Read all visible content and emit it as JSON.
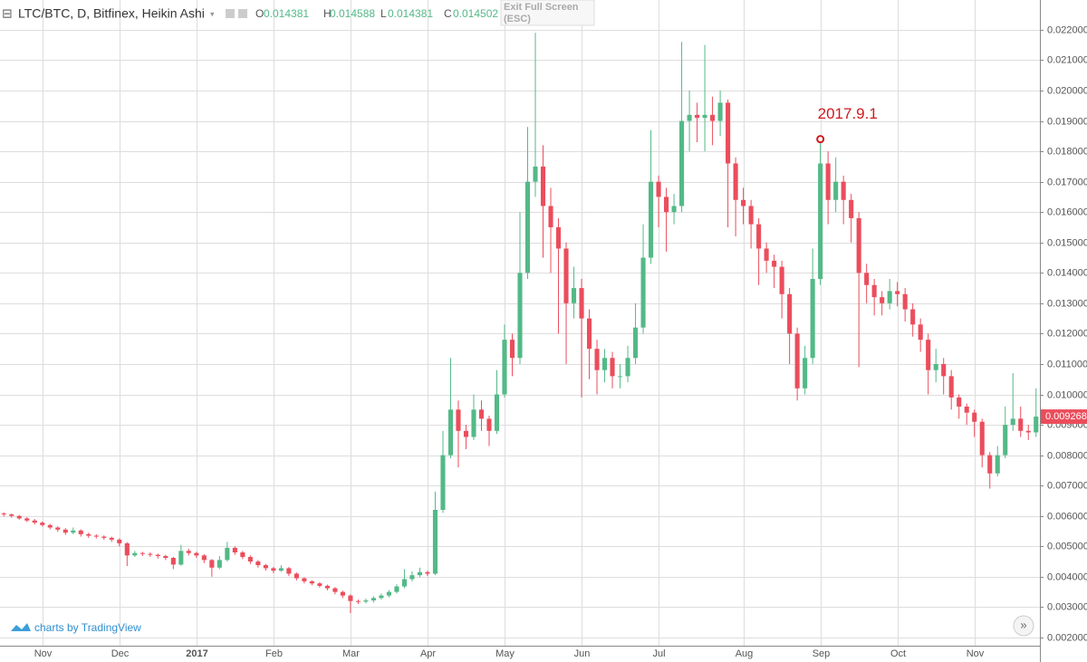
{
  "chart_data": {
    "type": "candlestick",
    "title": "LTC/BTC, D, Bitfinex, Heikin Ashi",
    "header_values": [
      {
        "label": "O",
        "value": 0.014381
      },
      {
        "label": "H",
        "value": 0.014588
      },
      {
        "label": "L",
        "value": 0.014381
      },
      {
        "label": "C",
        "value": 0.014502
      }
    ],
    "last_price": 0.009268,
    "annotation": {
      "text": "2017.9.1",
      "index": 106
    },
    "up_color": "#53b987",
    "down_color": "#eb4d5c",
    "grid": true,
    "ylim": [
      0.00173,
      0.02298
    ],
    "yticks": [
      {
        "value": 0.002,
        "label": "0.002000"
      },
      {
        "value": 0.003,
        "label": "0.003000"
      },
      {
        "value": 0.004,
        "label": "0.004000"
      },
      {
        "value": 0.005,
        "label": "0.005000"
      },
      {
        "value": 0.006,
        "label": "0.006000"
      },
      {
        "value": 0.007,
        "label": "0.007000"
      },
      {
        "value": 0.008,
        "label": "0.008000"
      },
      {
        "value": 0.009,
        "label": "0.009000"
      },
      {
        "value": 0.01,
        "label": "0.010000"
      },
      {
        "value": 0.011,
        "label": "0.011000"
      },
      {
        "value": 0.012,
        "label": "0.012000"
      },
      {
        "value": 0.013,
        "label": "0.013000"
      },
      {
        "value": 0.014,
        "label": "0.014000"
      },
      {
        "value": 0.015,
        "label": "0.015000"
      },
      {
        "value": 0.016,
        "label": "0.016000"
      },
      {
        "value": 0.017,
        "label": "0.017000"
      },
      {
        "value": 0.018,
        "label": "0.018000"
      },
      {
        "value": 0.019,
        "label": "0.019000"
      },
      {
        "value": 0.02,
        "label": "0.020000"
      },
      {
        "value": 0.021,
        "label": "0.021000"
      },
      {
        "value": 0.022,
        "label": "0.022000"
      }
    ],
    "categories": [
      null,
      null,
      null,
      null,
      null,
      "Nov",
      null,
      null,
      null,
      null,
      null,
      null,
      null,
      null,
      null,
      "Dec",
      null,
      null,
      null,
      null,
      null,
      null,
      null,
      null,
      null,
      "2017",
      null,
      null,
      null,
      null,
      null,
      null,
      null,
      null,
      null,
      "Feb",
      null,
      null,
      null,
      null,
      null,
      null,
      null,
      null,
      null,
      "Mar",
      null,
      null,
      null,
      null,
      null,
      null,
      null,
      null,
      null,
      "Apr",
      null,
      null,
      null,
      null,
      null,
      null,
      null,
      null,
      null,
      "May",
      null,
      null,
      null,
      null,
      null,
      null,
      null,
      null,
      null,
      "Jun",
      null,
      null,
      null,
      null,
      null,
      null,
      null,
      null,
      null,
      "Jul",
      null,
      null,
      null,
      null,
      null,
      null,
      null,
      null,
      null,
      null,
      "Aug",
      null,
      null,
      null,
      null,
      null,
      null,
      null,
      null,
      null,
      "Sep",
      null,
      null,
      null,
      null,
      null,
      null,
      null,
      null,
      null,
      "Oct",
      null,
      null,
      null,
      null,
      null,
      null,
      null,
      null,
      null,
      "Nov",
      null,
      null,
      null,
      null,
      null,
      null,
      null,
      null
    ],
    "open": [
      0.00608,
      0.00605,
      0.006,
      0.00592,
      0.00585,
      0.00578,
      0.0057,
      0.00562,
      0.00555,
      0.00545,
      0.00552,
      0.0054,
      0.00535,
      0.00532,
      0.00528,
      0.00522,
      0.0051,
      0.0047,
      0.00478,
      0.00475,
      0.00472,
      0.00468,
      0.00462,
      0.0044,
      0.00485,
      0.00478,
      0.0047,
      0.00455,
      0.0043,
      0.00455,
      0.00495,
      0.0048,
      0.00465,
      0.0045,
      0.00438,
      0.00428,
      0.0042,
      0.00428,
      0.0041,
      0.00395,
      0.00385,
      0.00378,
      0.0037,
      0.00362,
      0.0035,
      0.00338,
      0.0032,
      0.00318,
      0.00322,
      0.0033,
      0.00338,
      0.0035,
      0.00368,
      0.00392,
      0.00405,
      0.00415,
      0.0041,
      0.0062,
      0.008,
      0.0095,
      0.0088,
      0.0086,
      0.0095,
      0.0092,
      0.0088,
      0.01,
      0.0118,
      0.0112,
      0.014,
      0.017,
      0.0175,
      0.0162,
      0.0155,
      0.0148,
      0.013,
      0.0135,
      0.0125,
      0.0115,
      0.0108,
      0.0112,
      0.0106,
      0.0106,
      0.0112,
      0.0122,
      0.0145,
      0.017,
      0.0165,
      0.016,
      0.0162,
      0.019,
      0.0192,
      0.0191,
      0.0192,
      0.019,
      0.0196,
      0.0176,
      0.0164,
      0.0162,
      0.0156,
      0.0148,
      0.0144,
      0.0142,
      0.0133,
      0.012,
      0.0102,
      0.0112,
      0.0138,
      0.0176,
      0.0164,
      0.017,
      0.0164,
      0.0158,
      0.014,
      0.0136,
      0.0132,
      0.013,
      0.0134,
      0.0133,
      0.0128,
      0.0123,
      0.0118,
      0.0108,
      0.011,
      0.0106,
      0.0099,
      0.0096,
      0.0094,
      0.0091,
      0.008,
      0.0074,
      0.008,
      0.009,
      0.0092,
      0.0088,
      0.00875
    ],
    "high": [
      0.00612,
      0.00608,
      0.00603,
      0.00596,
      0.0059,
      0.00582,
      0.00574,
      0.00566,
      0.0056,
      0.00562,
      0.00556,
      0.00545,
      0.0054,
      0.00536,
      0.00532,
      0.00526,
      0.00514,
      0.00485,
      0.00482,
      0.0048,
      0.00476,
      0.00472,
      0.00466,
      0.00505,
      0.00492,
      0.00482,
      0.00474,
      0.00458,
      0.00468,
      0.00515,
      0.005,
      0.00485,
      0.0047,
      0.00455,
      0.00442,
      0.00432,
      0.00438,
      0.00432,
      0.00414,
      0.00398,
      0.00388,
      0.00382,
      0.00374,
      0.00366,
      0.00354,
      0.00342,
      0.00325,
      0.00328,
      0.00336,
      0.00345,
      0.00356,
      0.00375,
      0.00425,
      0.00418,
      0.0043,
      0.0042,
      0.0068,
      0.0088,
      0.0112,
      0.0098,
      0.009,
      0.01,
      0.0098,
      0.0093,
      0.0108,
      0.0123,
      0.012,
      0.016,
      0.0188,
      0.0219,
      0.0182,
      0.0168,
      0.0158,
      0.015,
      0.0142,
      0.0138,
      0.0128,
      0.0118,
      0.0115,
      0.0114,
      0.011,
      0.0116,
      0.013,
      0.0156,
      0.0187,
      0.0172,
      0.0168,
      0.0166,
      0.0216,
      0.02,
      0.0196,
      0.0215,
      0.0198,
      0.02,
      0.0197,
      0.0178,
      0.0168,
      0.0164,
      0.0158,
      0.015,
      0.0146,
      0.0144,
      0.0135,
      0.0122,
      0.0116,
      0.0148,
      0.0184,
      0.018,
      0.0178,
      0.0172,
      0.0166,
      0.016,
      0.0143,
      0.0138,
      0.0134,
      0.0138,
      0.0137,
      0.0135,
      0.013,
      0.0125,
      0.012,
      0.0115,
      0.0112,
      0.0108,
      0.01,
      0.0097,
      0.0095,
      0.0092,
      0.0081,
      0.0083,
      0.0096,
      0.0107,
      0.0096,
      0.009,
      0.0102
    ],
    "low": [
      0.00598,
      0.00594,
      0.00588,
      0.0058,
      0.00572,
      0.00565,
      0.00556,
      0.00548,
      0.00538,
      0.0054,
      0.00532,
      0.00528,
      0.00526,
      0.00522,
      0.00515,
      0.005,
      0.00435,
      0.00465,
      0.00468,
      0.00465,
      0.0046,
      0.00455,
      0.00425,
      0.00436,
      0.0047,
      0.00462,
      0.00445,
      0.004,
      0.00425,
      0.0045,
      0.00472,
      0.00458,
      0.00442,
      0.0043,
      0.0042,
      0.00412,
      0.00416,
      0.00402,
      0.00388,
      0.00378,
      0.00372,
      0.00364,
      0.00355,
      0.00342,
      0.0033,
      0.0028,
      0.0031,
      0.00312,
      0.00315,
      0.00325,
      0.00332,
      0.00345,
      0.00362,
      0.00385,
      0.00398,
      0.00402,
      0.00405,
      0.0061,
      0.0079,
      0.0076,
      0.0082,
      0.0085,
      0.0088,
      0.0083,
      0.0087,
      0.0099,
      0.0106,
      0.011,
      0.0138,
      0.0165,
      0.0145,
      0.014,
      0.012,
      0.011,
      0.0125,
      0.0099,
      0.0105,
      0.01,
      0.0104,
      0.0102,
      0.0102,
      0.0104,
      0.011,
      0.012,
      0.0143,
      0.0155,
      0.0147,
      0.0156,
      0.016,
      0.018,
      0.0183,
      0.018,
      0.0182,
      0.0185,
      0.0155,
      0.0152,
      0.0156,
      0.0148,
      0.0136,
      0.014,
      0.0135,
      0.0125,
      0.011,
      0.0098,
      0.01,
      0.011,
      0.0136,
      0.0156,
      0.016,
      0.0156,
      0.015,
      0.0109,
      0.013,
      0.0126,
      0.0126,
      0.0128,
      0.0129,
      0.0124,
      0.0119,
      0.0114,
      0.01,
      0.0104,
      0.01,
      0.0095,
      0.0092,
      0.009,
      0.0086,
      0.0076,
      0.0069,
      0.0073,
      0.0079,
      0.0088,
      0.0086,
      0.0085,
      0.0086
    ],
    "close": [
      0.00605,
      0.006,
      0.00592,
      0.00585,
      0.00578,
      0.0057,
      0.00562,
      0.00555,
      0.00545,
      0.00552,
      0.0054,
      0.00535,
      0.00532,
      0.00528,
      0.00522,
      0.0051,
      0.0047,
      0.00478,
      0.00475,
      0.00472,
      0.00468,
      0.00462,
      0.0044,
      0.00485,
      0.00478,
      0.0047,
      0.00455,
      0.0043,
      0.00455,
      0.00495,
      0.0048,
      0.00465,
      0.0045,
      0.00438,
      0.00428,
      0.0042,
      0.00428,
      0.0041,
      0.00395,
      0.00385,
      0.00378,
      0.0037,
      0.00362,
      0.0035,
      0.00338,
      0.0032,
      0.00318,
      0.00322,
      0.0033,
      0.00338,
      0.0035,
      0.00368,
      0.00392,
      0.00405,
      0.00415,
      0.0041,
      0.0062,
      0.008,
      0.0095,
      0.0088,
      0.0086,
      0.0095,
      0.0092,
      0.0088,
      0.01,
      0.0118,
      0.0112,
      0.014,
      0.017,
      0.0175,
      0.0162,
      0.0155,
      0.0148,
      0.013,
      0.0135,
      0.0125,
      0.0115,
      0.0108,
      0.0112,
      0.0106,
      0.0106,
      0.0112,
      0.0122,
      0.0145,
      0.017,
      0.0165,
      0.016,
      0.0162,
      0.019,
      0.0192,
      0.0191,
      0.0192,
      0.019,
      0.0196,
      0.0176,
      0.0164,
      0.0162,
      0.0156,
      0.0148,
      0.0144,
      0.0142,
      0.0133,
      0.012,
      0.0102,
      0.0112,
      0.0138,
      0.0176,
      0.0164,
      0.017,
      0.0164,
      0.0158,
      0.014,
      0.0136,
      0.0132,
      0.013,
      0.0134,
      0.0133,
      0.0128,
      0.0123,
      0.0118,
      0.0108,
      0.011,
      0.0106,
      0.0099,
      0.0096,
      0.0094,
      0.0091,
      0.008,
      0.0074,
      0.008,
      0.009,
      0.0092,
      0.0088,
      0.00875,
      0.00927
    ]
  },
  "ui": {
    "tooltip": [
      "Exit Full Screen",
      "(ESC)"
    ],
    "brand": "charts by TradingView",
    "scroll_button": "»",
    "collapse_icon": "⊟"
  }
}
